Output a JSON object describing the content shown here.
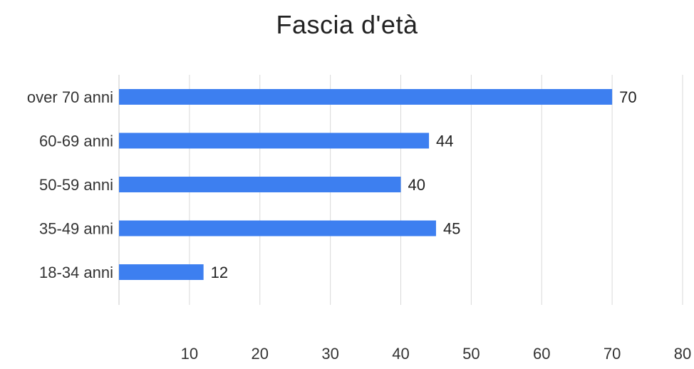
{
  "chart_data": {
    "type": "bar",
    "orientation": "horizontal",
    "title": "Fascia d'età",
    "xlabel": "",
    "ylabel": "",
    "categories": [
      "over 70 anni",
      "60-69 anni",
      "50-59 anni",
      "35-49 anni",
      "18-34 anni"
    ],
    "values": [
      70,
      44,
      40,
      45,
      12
    ],
    "xlim": [
      0,
      80
    ],
    "x_ticks": [
      10,
      20,
      30,
      40,
      50,
      60,
      70,
      80
    ],
    "grid": true,
    "data_labels": true,
    "legend": "none",
    "colors": {
      "bar": "#3D7FF0",
      "grid": "#D9D9D9",
      "text": "#333333"
    }
  }
}
